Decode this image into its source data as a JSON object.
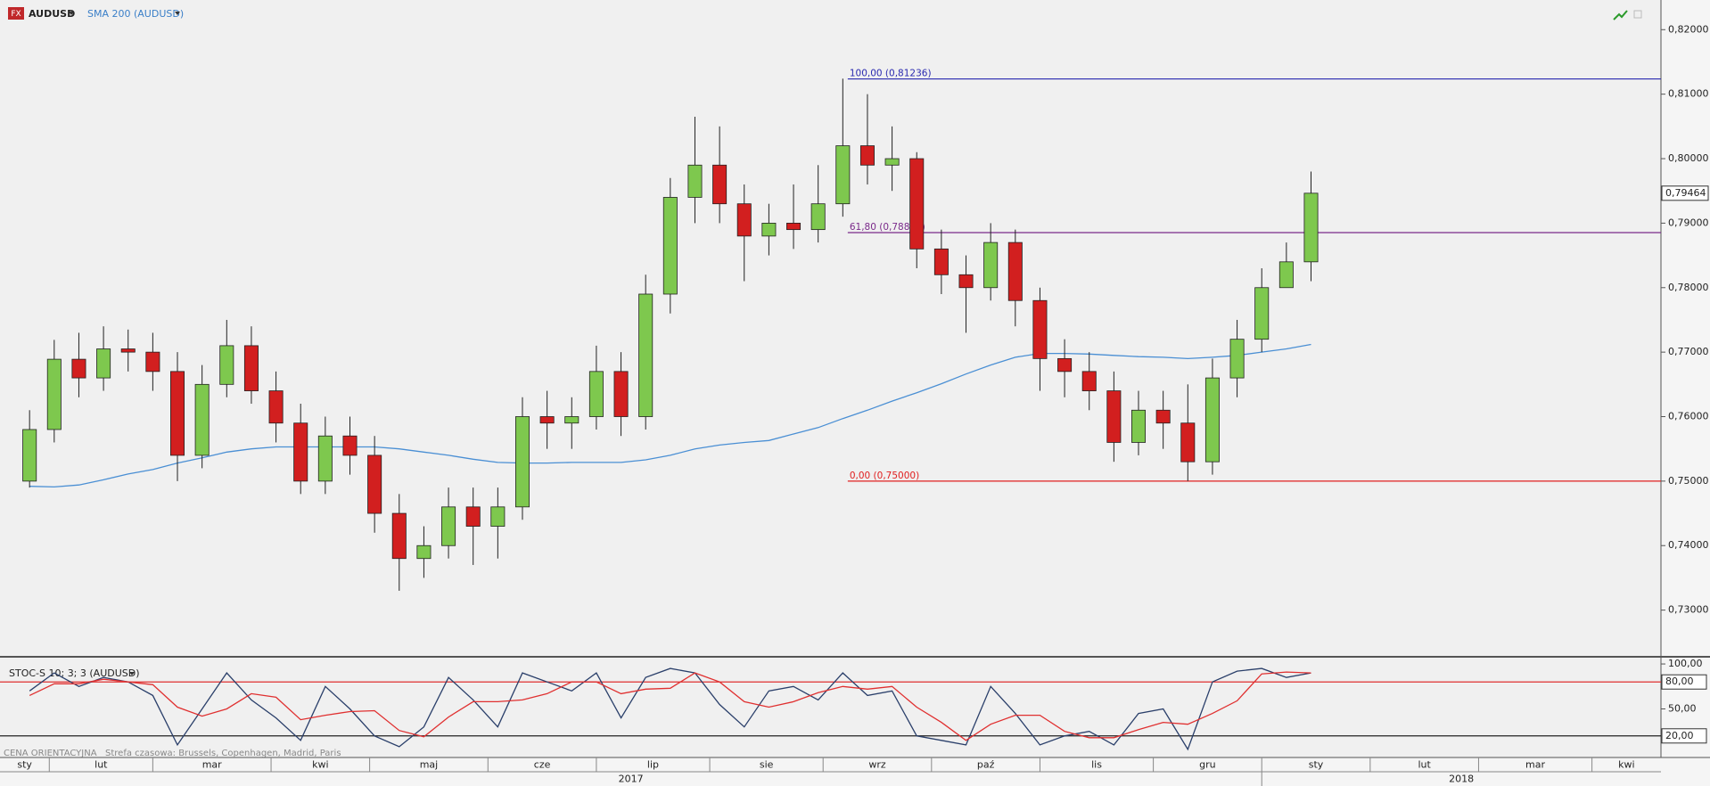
{
  "chart_data": {
    "type": "candlestick",
    "symbol": "AUDUSD",
    "badge": "FX",
    "indicator_label": "SMA 200 (AUDUSD)",
    "footer_left": "CENA ORIENTACYJNA",
    "footer_tz": "Strefa czasowa: Brussels, Copenhagen, Madrid, Paris",
    "up_color": "#7ec84e",
    "down_color": "#d21f1f",
    "sma_color": "#4a8fd4",
    "xlim": [
      -1,
      336
    ],
    "ylim": [
      0.7229,
      0.8246
    ],
    "yticks": [
      {
        "value": 0.73,
        "label": "0,73000"
      },
      {
        "value": 0.74,
        "label": "0,74000"
      },
      {
        "value": 0.75,
        "label": "0,75000"
      },
      {
        "value": 0.76,
        "label": "0,76000"
      },
      {
        "value": 0.77,
        "label": "0,77000"
      },
      {
        "value": 0.78,
        "label": "0,78000"
      },
      {
        "value": 0.79,
        "label": "0,79000"
      },
      {
        "value": 0.8,
        "label": "0,80000"
      },
      {
        "value": 0.81,
        "label": "0,81000"
      },
      {
        "value": 0.82,
        "label": "0,82000"
      }
    ],
    "xticks": [
      {
        "value": -3,
        "label": "sty"
      },
      {
        "value": 9,
        "label": "lut"
      },
      {
        "value": 30,
        "label": "mar"
      },
      {
        "value": 54,
        "label": "kwi"
      },
      {
        "value": 74,
        "label": "maj"
      },
      {
        "value": 98,
        "label": "cze"
      },
      {
        "value": 120,
        "label": "lip"
      },
      {
        "value": 143,
        "label": "sie"
      },
      {
        "value": 166,
        "label": "wrz"
      },
      {
        "value": 188,
        "label": "paź"
      },
      {
        "value": 210,
        "label": "lis"
      },
      {
        "value": 233,
        "label": "gru"
      },
      {
        "value": 255,
        "label": "sty"
      },
      {
        "value": 277,
        "label": "lut"
      },
      {
        "value": 299,
        "label": "mar"
      },
      {
        "value": 322,
        "label": "kwi"
      }
    ],
    "years": [
      {
        "value": -3,
        "label": "2017"
      },
      {
        "value": 255,
        "label": "2018"
      }
    ],
    "last_price": {
      "value": 0.79464,
      "label": "0,79464"
    },
    "fib": {
      "x_start": 171,
      "levels": [
        {
          "value": 0.81236,
          "label": "100,00 (0,81236)",
          "color": "#2b2bb0"
        },
        {
          "value": 0.78854,
          "label": "61,80 (0,78854)",
          "color": "#7a2a8a"
        },
        {
          "value": 0.75,
          "label": "0,00 (0,75000)",
          "color": "#e02020"
        }
      ]
    },
    "x": [
      5,
      10,
      15,
      20,
      25,
      30,
      35,
      40,
      45,
      50,
      55,
      60,
      65,
      70,
      75,
      80,
      85,
      90,
      95,
      100,
      105,
      110,
      115,
      120,
      125,
      130,
      135,
      140,
      145,
      150,
      155,
      160,
      165,
      170,
      175,
      180,
      185,
      190,
      195,
      200,
      205,
      210,
      215,
      220,
      225,
      230,
      235,
      240,
      245,
      250,
      255,
      260,
      265
    ],
    "open": [
      0.75,
      0.758,
      0.7689,
      0.766,
      0.7705,
      0.77,
      0.767,
      0.754,
      0.765,
      0.771,
      0.764,
      0.759,
      0.75,
      0.757,
      0.754,
      0.745,
      0.738,
      0.74,
      0.746,
      0.743,
      0.746,
      0.76,
      0.759,
      0.76,
      0.767,
      0.76,
      0.779,
      0.794,
      0.799,
      0.793,
      0.788,
      0.79,
      0.789,
      0.793,
      0.802,
      0.799,
      0.8,
      0.786,
      0.782,
      0.78,
      0.787,
      0.778,
      0.769,
      0.767,
      0.764,
      0.756,
      0.761,
      0.759,
      0.753,
      0.766,
      0.772,
      0.78,
      0.784
    ],
    "high": [
      0.761,
      0.7719,
      0.773,
      0.774,
      0.7735,
      0.773,
      0.77,
      0.768,
      0.775,
      0.774,
      0.767,
      0.762,
      0.76,
      0.76,
      0.757,
      0.748,
      0.743,
      0.749,
      0.749,
      0.749,
      0.763,
      0.764,
      0.763,
      0.771,
      0.77,
      0.782,
      0.797,
      0.8065,
      0.805,
      0.796,
      0.793,
      0.796,
      0.799,
      0.8124,
      0.81,
      0.805,
      0.801,
      0.789,
      0.785,
      0.79,
      0.789,
      0.78,
      0.772,
      0.77,
      0.767,
      0.764,
      0.764,
      0.765,
      0.769,
      0.775,
      0.783,
      0.787,
      0.798
    ],
    "low": [
      0.749,
      0.756,
      0.763,
      0.764,
      0.767,
      0.764,
      0.75,
      0.752,
      0.763,
      0.762,
      0.756,
      0.748,
      0.748,
      0.751,
      0.742,
      0.733,
      0.735,
      0.738,
      0.737,
      0.738,
      0.744,
      0.755,
      0.755,
      0.758,
      0.757,
      0.758,
      0.776,
      0.79,
      0.79,
      0.781,
      0.785,
      0.786,
      0.787,
      0.791,
      0.796,
      0.795,
      0.783,
      0.779,
      0.773,
      0.778,
      0.774,
      0.764,
      0.763,
      0.761,
      0.753,
      0.754,
      0.755,
      0.75,
      0.751,
      0.763,
      0.77,
      0.78,
      0.781
    ],
    "close": [
      0.758,
      0.7689,
      0.766,
      0.7705,
      0.77,
      0.767,
      0.754,
      0.765,
      0.771,
      0.764,
      0.759,
      0.75,
      0.757,
      0.754,
      0.745,
      0.738,
      0.74,
      0.746,
      0.743,
      0.746,
      0.76,
      0.759,
      0.76,
      0.767,
      0.76,
      0.779,
      0.794,
      0.799,
      0.793,
      0.788,
      0.79,
      0.789,
      0.793,
      0.802,
      0.799,
      0.8,
      0.786,
      0.782,
      0.78,
      0.787,
      0.778,
      0.769,
      0.767,
      0.764,
      0.756,
      0.761,
      0.759,
      0.753,
      0.766,
      0.772,
      0.78,
      0.784,
      0.79464
    ],
    "sma": [
      0.7492,
      0.7491,
      0.7494,
      0.7502,
      0.7511,
      0.7518,
      0.7528,
      0.7536,
      0.7545,
      0.755,
      0.7553,
      0.7553,
      0.7553,
      0.7553,
      0.7553,
      0.755,
      0.7545,
      0.754,
      0.7534,
      0.7529,
      0.7528,
      0.7528,
      0.7529,
      0.7529,
      0.7529,
      0.7533,
      0.754,
      0.755,
      0.7556,
      0.756,
      0.7563,
      0.7573,
      0.7583,
      0.7597,
      0.761,
      0.7624,
      0.7637,
      0.7651,
      0.7666,
      0.768,
      0.7692,
      0.7698,
      0.7698,
      0.7697,
      0.7695,
      0.7693,
      0.7692,
      0.769,
      0.7692,
      0.7695,
      0.77,
      0.7705,
      0.7712
    ],
    "stoch": {
      "title": "STOC-S 10; 3; 3 (AUDUSD)",
      "ylim": [
        -4,
        106
      ],
      "yticks": [
        {
          "value": 100,
          "label": "100,00"
        },
        {
          "value": 50,
          "label": "50,00"
        }
      ],
      "levels": [
        {
          "value": 80,
          "label": "80,00",
          "color": "#e03030"
        },
        {
          "value": 20,
          "label": "20,00",
          "color": "#222222"
        }
      ],
      "series": [
        {
          "color": "#2a3f6a",
          "values": [
            70,
            90,
            75,
            85,
            80,
            65,
            10,
            50,
            90,
            60,
            40,
            15,
            75,
            50,
            20,
            8,
            30,
            85,
            60,
            30,
            90,
            80,
            70,
            90,
            40,
            85,
            95,
            90,
            55,
            30,
            70,
            75,
            60,
            90,
            65,
            70,
            20,
            15,
            10,
            75,
            45,
            10,
            20,
            25,
            10,
            45,
            50,
            5,
            80,
            92,
            95,
            85,
            90
          ]
        },
        {
          "color": "#e03030",
          "values": [
            65,
            78,
            78,
            83,
            80,
            77,
            52,
            42,
            50,
            67,
            63,
            38,
            43,
            47,
            48,
            26,
            19,
            41,
            58,
            58,
            60,
            67,
            80,
            80,
            67,
            72,
            73,
            90,
            80,
            58,
            52,
            58,
            68,
            75,
            72,
            75,
            52,
            35,
            15,
            33,
            43,
            43,
            25,
            18,
            18,
            27,
            35,
            33,
            45,
            59,
            89,
            91,
            90
          ]
        }
      ]
    }
  }
}
